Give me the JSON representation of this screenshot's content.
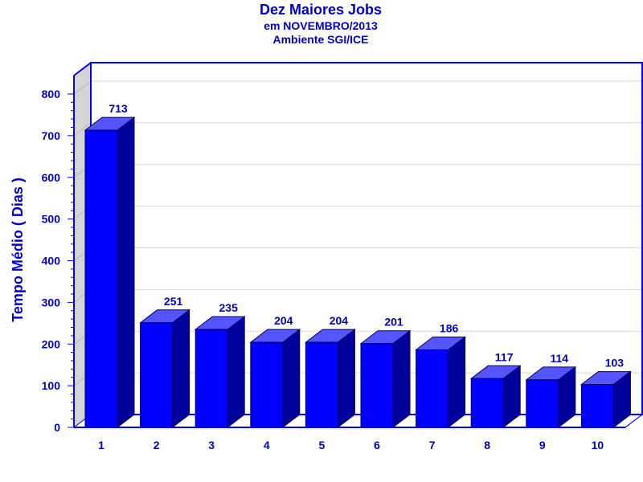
{
  "chart_data": {
    "type": "bar",
    "title": "Dez Maiores Jobs",
    "subtitle_1": "em NOVEMBRO/2013",
    "subtitle_2": "Ambiente SGI/ICE",
    "xlabel": "",
    "ylabel": "Tempo Médio ( Dias )",
    "categories": [
      "1",
      "2",
      "3",
      "4",
      "5",
      "6",
      "7",
      "8",
      "9",
      "10"
    ],
    "values": [
      713,
      251,
      235,
      204,
      204,
      201,
      186,
      117,
      114,
      103
    ],
    "ylim": [
      0,
      800
    ],
    "yticks": [
      0,
      100,
      200,
      300,
      400,
      500,
      600,
      700,
      800
    ],
    "grid": true,
    "three_d": true,
    "colors": {
      "text": "#0000cc",
      "bar_front": "#0000ff",
      "bar_top": "#5555ff",
      "bar_side": "#00009a",
      "frame": "#0000ff",
      "left_wall": "#d4d4d4",
      "grid": "#d8d8d8"
    }
  }
}
